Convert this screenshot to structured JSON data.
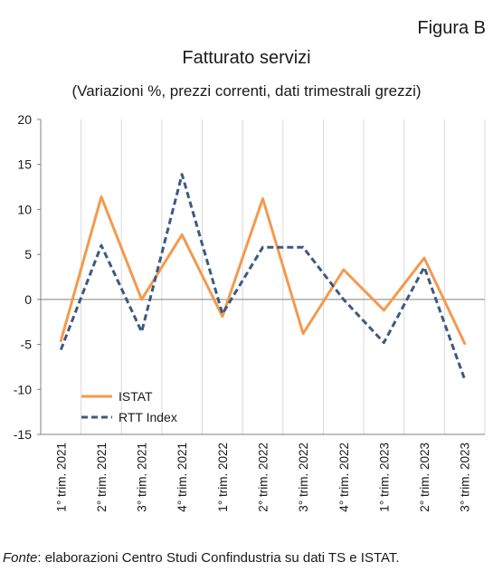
{
  "header": {
    "figure_label": "Figura B",
    "title": "Fatturato servizi",
    "subtitle": "(Variazioni %, prezzi correnti, dati trimestrali grezzi)"
  },
  "footer": {
    "source_prefix": "Fonte",
    "source_text": ": elaborazioni Centro Studi Confindustria su dati TS e ISTAT."
  },
  "chart_data": {
    "type": "line",
    "title": "Fatturato servizi",
    "subtitle": "(Variazioni %, prezzi correnti, dati trimestrali grezzi)",
    "categories": [
      "1° trim. 2021",
      "2° trim. 2021",
      "3° trim. 2021",
      "4° trim. 2021",
      "1° trim. 2022",
      "2° trim. 2022",
      "3° trim. 2022",
      "4° trim. 2022",
      "1° trim. 2023",
      "2° trim. 2023",
      "3° trim. 2023"
    ],
    "series": [
      {
        "name": "ISTAT",
        "color": "#f39a4e",
        "style": "solid",
        "values": [
          -4.6,
          11.4,
          0.0,
          7.2,
          -1.9,
          11.2,
          -3.8,
          3.3,
          -1.2,
          4.6,
          -4.9
        ]
      },
      {
        "name": "RTT Index",
        "color": "#3d5a80",
        "style": "dashed",
        "values": [
          -5.6,
          6.0,
          -3.6,
          13.9,
          -1.6,
          5.8,
          5.8,
          0.0,
          -4.8,
          3.6,
          -8.9
        ]
      }
    ],
    "ylim": [
      -15,
      20
    ],
    "yticks": [
      -15,
      -10,
      -5,
      0,
      5,
      10,
      15,
      20
    ],
    "xlabel": "",
    "ylabel": "",
    "grid": "vertical",
    "legend_position": "bottom-left"
  }
}
